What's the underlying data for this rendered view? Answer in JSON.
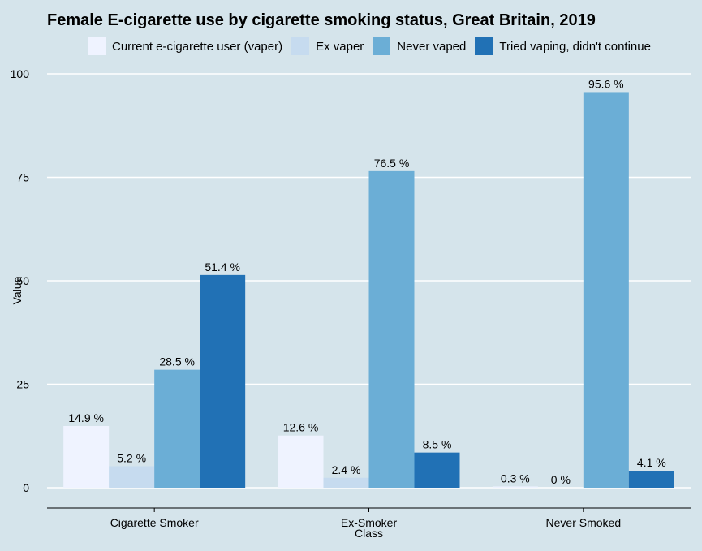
{
  "chart_data": {
    "type": "bar",
    "title": "Female E-cigarette use by cigarette smoking status, Great Britain, 2019",
    "xlabel": "Class",
    "ylabel": "Value",
    "ylim": [
      0,
      100
    ],
    "yticks": [
      0,
      25,
      50,
      75,
      100
    ],
    "grid": true,
    "legend_position": "top",
    "categories": [
      "Cigarette Smoker",
      "Ex-Smoker",
      "Never Smoked"
    ],
    "series": [
      {
        "name": "Current e-cigarette user (vaper)",
        "color": "#eff3ff",
        "values": [
          14.9,
          12.6,
          0.3
        ],
        "labels": [
          "14.9 %",
          "12.6 %",
          "0.3 %"
        ]
      },
      {
        "name": "Ex vaper",
        "color": "#c6dbef",
        "values": [
          5.2,
          2.4,
          0
        ],
        "labels": [
          "5.2 %",
          "2.4 %",
          "0 %"
        ]
      },
      {
        "name": "Never vaped",
        "color": "#6baed6",
        "values": [
          28.5,
          76.5,
          95.6
        ],
        "labels": [
          "28.5 %",
          "76.5 %",
          "95.6 %"
        ]
      },
      {
        "name": "Tried vaping, didn't continue",
        "color": "#2171b5",
        "values": [
          51.4,
          8.5,
          4.1
        ],
        "labels": [
          "51.4 %",
          "8.5 %",
          "4.1 %"
        ]
      }
    ]
  }
}
